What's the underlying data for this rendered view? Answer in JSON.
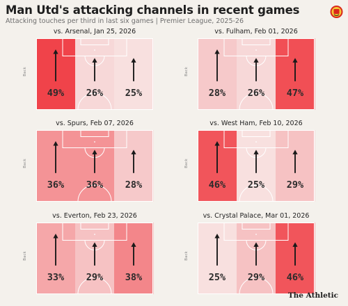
{
  "title": "Man Utd's attacking channels in recent games",
  "subtitle": "Attacking touches per third in last six games | Premier League, 2025-26",
  "brand": "The Athletic",
  "side_label": "Back",
  "colors": {
    "background": "#f4f1ec",
    "shade_low": "#f8e9e8",
    "shade_high": "#f0434a",
    "arrow": "#1a1a1a",
    "pitch_line": "#ffffff"
  },
  "chart_data": [
    {
      "type": "heatmap",
      "title": "vs. Arsenal, Jan 25, 2026",
      "categories": [
        "Left",
        "Centre",
        "Right"
      ],
      "unit": "%",
      "values": [
        49,
        26,
        25
      ]
    },
    {
      "type": "heatmap",
      "title": "vs. Fulham, Feb 01, 2026",
      "categories": [
        "Left",
        "Centre",
        "Right"
      ],
      "unit": "%",
      "values": [
        28,
        26,
        47
      ]
    },
    {
      "type": "heatmap",
      "title": "vs. Spurs, Feb 07, 2026",
      "categories": [
        "Left",
        "Centre",
        "Right"
      ],
      "unit": "%",
      "values": [
        36,
        36,
        28
      ]
    },
    {
      "type": "heatmap",
      "title": "vs. West Ham, Feb 10, 2026",
      "categories": [
        "Left",
        "Centre",
        "Right"
      ],
      "unit": "%",
      "values": [
        46,
        25,
        29
      ]
    },
    {
      "type": "heatmap",
      "title": "vs. Everton, Feb 23, 2026",
      "categories": [
        "Left",
        "Centre",
        "Right"
      ],
      "unit": "%",
      "values": [
        33,
        29,
        38
      ]
    },
    {
      "type": "heatmap",
      "title": "vs. Crystal Palace, Mar 01, 2026",
      "categories": [
        "Left",
        "Centre",
        "Right"
      ],
      "unit": "%",
      "values": [
        25,
        29,
        46
      ]
    }
  ]
}
